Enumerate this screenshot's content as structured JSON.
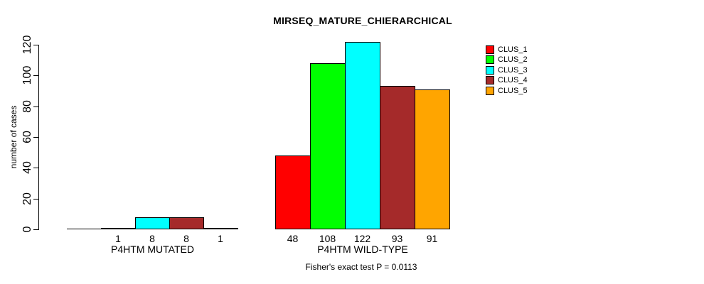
{
  "chart_data": {
    "type": "bar",
    "title": "MIRSEQ_MATURE_CHIERARCHICAL",
    "ylabel": "number of cases",
    "ylim": [
      0,
      120
    ],
    "yticks": [
      0,
      20,
      40,
      60,
      80,
      100,
      120
    ],
    "categories": [
      "P4HTM MUTATED",
      "P4HTM WILD-TYPE"
    ],
    "series": [
      {
        "name": "CLUS_1",
        "color": "#FF0000",
        "values": [
          0,
          48
        ]
      },
      {
        "name": "CLUS_2",
        "color": "#00FF00",
        "values": [
          1,
          108
        ]
      },
      {
        "name": "CLUS_3",
        "color": "#00FFFF",
        "values": [
          8,
          122
        ]
      },
      {
        "name": "CLUS_4",
        "color": "#A52A2A",
        "values": [
          8,
          93
        ]
      },
      {
        "name": "CLUS_5",
        "color": "#FFA500",
        "values": [
          1,
          91
        ]
      }
    ],
    "bar_value_labels": [
      [
        "",
        "1",
        "8",
        "8",
        "1"
      ],
      [
        "48",
        "108",
        "122",
        "93",
        "91"
      ]
    ],
    "legend_position": "right",
    "grid": false,
    "annotation": "Fisher's exact test P = 0.0113",
    "axis_color": "#000000"
  }
}
